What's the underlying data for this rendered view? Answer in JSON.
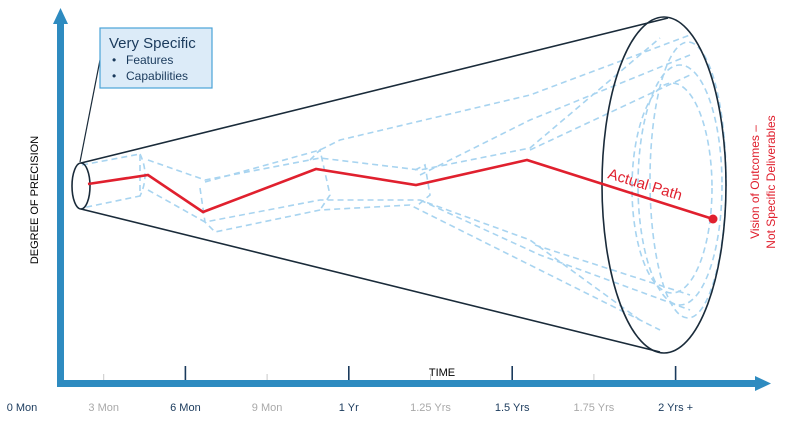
{
  "axes": {
    "y_title": "DEGREE OF PRECISION",
    "x_title": "TIME",
    "ticks": [
      {
        "label": "0 Mon",
        "major": true
      },
      {
        "label": "3 Mon",
        "major": false
      },
      {
        "label": "6 Mon",
        "major": true
      },
      {
        "label": "9 Mon",
        "major": false
      },
      {
        "label": "1 Yr",
        "major": true
      },
      {
        "label": "1.25 Yrs",
        "major": false
      },
      {
        "label": "1.5 Yrs",
        "major": true
      },
      {
        "label": "1.75 Yrs",
        "major": false
      },
      {
        "label": "2 Yrs +",
        "major": true
      }
    ]
  },
  "callout": {
    "title": "Very Specific",
    "items": [
      "Features",
      "Capabilities"
    ]
  },
  "path_label": "Actual Path",
  "end_label": {
    "line1": "Vision of Outcomes –",
    "line2": "Not Specific Deliverables"
  },
  "colors": {
    "axis": "#2e8bc0",
    "path": "#e0202e",
    "cone": "#1a2b3a",
    "dashed": "#a8d4f0",
    "callout_fill": "#dcebf8",
    "callout_border": "#4aa3d8"
  }
}
